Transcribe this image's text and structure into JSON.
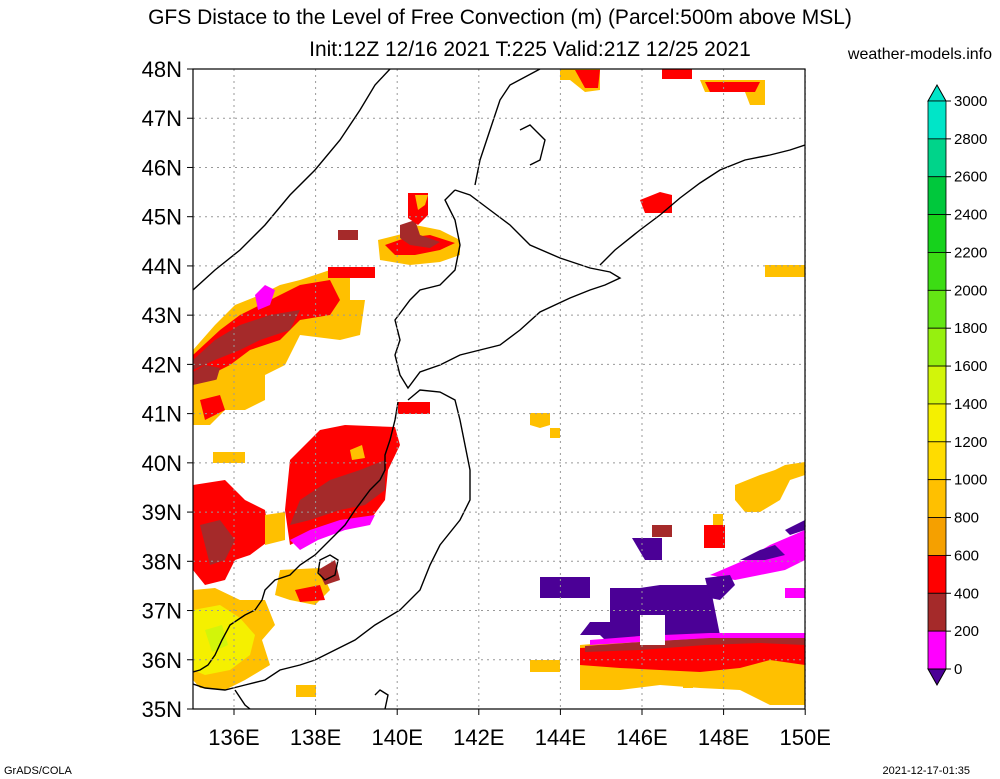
{
  "title_line1": "GFS Distace to the Level of Free Convection (m) (Parcel:500m above MSL)",
  "title_line2": "Init:12Z 12/16 2021 T:225 Valid:21Z 12/25 2021",
  "site": "weather-models.info",
  "footer_left": "GrADS/COLA",
  "footer_right": "2021-12-17-01:35",
  "lat_labels": [
    "48N",
    "47N",
    "46N",
    "45N",
    "44N",
    "43N",
    "42N",
    "41N",
    "40N",
    "39N",
    "38N",
    "37N",
    "36N",
    "35N"
  ],
  "lon_labels": [
    "136E",
    "138E",
    "140E",
    "142E",
    "144E",
    "146E",
    "148E",
    "150E"
  ],
  "colorbar": {
    "labels": [
      "3000",
      "2800",
      "2600",
      "2400",
      "2200",
      "2000",
      "1800",
      "1600",
      "1400",
      "1200",
      "1000",
      "800",
      "600",
      "400",
      "200",
      "0"
    ],
    "colors": [
      "#00e5c8",
      "#00d48a",
      "#00c83c",
      "#16d21c",
      "#3cdc14",
      "#64e614",
      "#96f00f",
      "#d2f50a",
      "#f5f000",
      "#ffdc00",
      "#ffc000",
      "#f5a000",
      "#ff0000",
      "#a52a2a",
      "#ff00ff",
      "#4b0096"
    ]
  }
}
